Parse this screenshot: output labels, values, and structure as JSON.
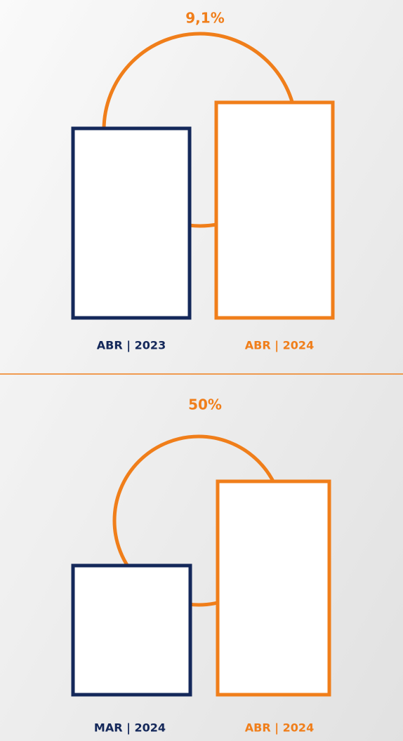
{
  "panels": [
    {
      "change": "9,1%",
      "labels": [
        "ABR | 2023",
        "ABR | 2024"
      ]
    },
    {
      "change": "50%",
      "labels": [
        "MAR | 2024",
        "ABR | 2024"
      ]
    }
  ]
}
